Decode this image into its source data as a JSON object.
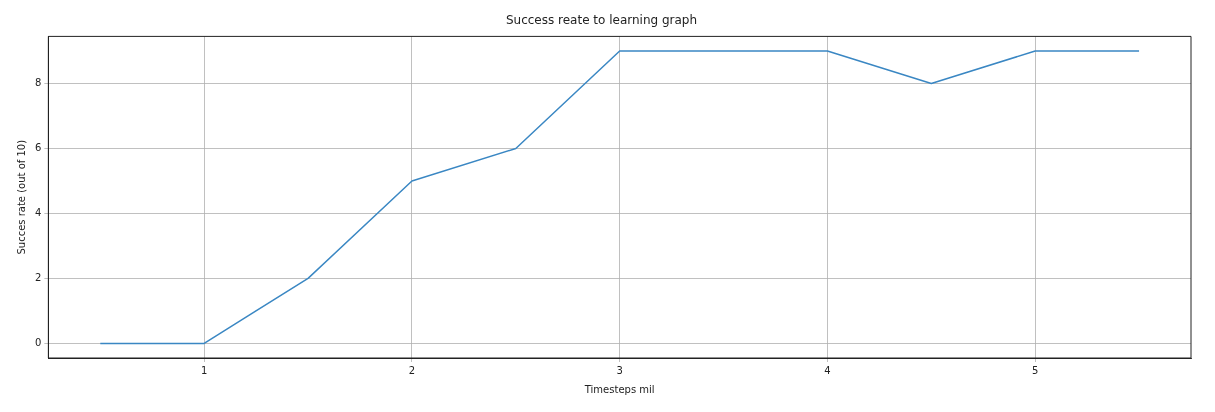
{
  "chart_data": {
    "type": "line",
    "title": "Success reate to learning graph",
    "xlabel": "Timesteps mil",
    "ylabel": "Succes rate (out of 10)",
    "x": [
      0.5,
      1,
      1.5,
      2,
      2.5,
      3,
      3.5,
      4,
      4.5,
      5,
      5.5
    ],
    "series": [
      {
        "color": "#3a87c3",
        "values": [
          0,
          0,
          2,
          5,
          6,
          9,
          9,
          9,
          8,
          9,
          9
        ]
      }
    ],
    "xlim": [
      0.25,
      5.75
    ],
    "xticks": [
      1,
      2,
      3,
      4,
      5
    ],
    "ylim": [
      -0.45,
      9.45
    ],
    "yticks": [
      0,
      2,
      4,
      6,
      8
    ],
    "grid": true,
    "legend": false,
    "marker": "none",
    "line_style": "solid"
  }
}
